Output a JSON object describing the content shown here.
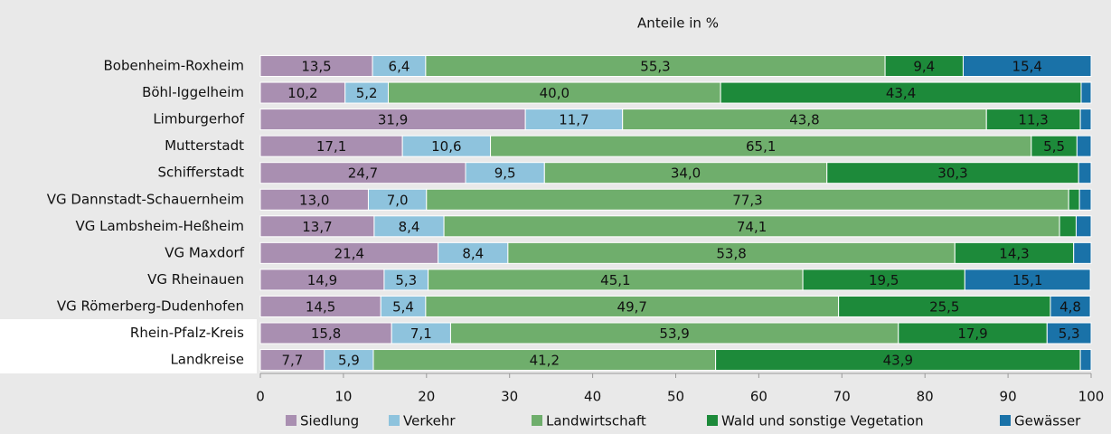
{
  "chart_data": {
    "type": "stacked-bar-horizontal",
    "title": "Anteile in %",
    "categories": [
      "Bobenheim-Roxheim",
      "Böhl-Iggelheim",
      "Limburgerhof",
      "Mutterstadt",
      "Schifferstadt",
      "VG Dannstadt-Schauernheim",
      "VG Lambsheim-Heßheim",
      "VG Maxdorf",
      "VG Rheinauen",
      "VG Römerberg-Dudenhofen",
      "Rhein-Pfalz-Kreis",
      "Landkreise"
    ],
    "series": [
      {
        "name": "Siedlung",
        "color": "#a98fb1",
        "values": [
          13.5,
          10.2,
          31.9,
          17.1,
          24.7,
          13.0,
          13.7,
          21.4,
          14.9,
          14.5,
          15.8,
          7.7
        ],
        "value_labels": [
          "13,5",
          "10,2",
          "31,9",
          "17,1",
          "24,7",
          "13,0",
          "13,7",
          "21,4",
          "14,9",
          "14,5",
          "15,8",
          "7,7"
        ]
      },
      {
        "name": "Verkehr",
        "color": "#8ec3dd",
        "values": [
          6.4,
          5.2,
          11.7,
          10.6,
          9.5,
          7.0,
          8.4,
          8.4,
          5.3,
          5.4,
          7.1,
          5.9
        ],
        "value_labels": [
          "6,4",
          "5,2",
          "11,7",
          "10,6",
          "9,5",
          "7,0",
          "8,4",
          "8,4",
          "5,3",
          "5,4",
          "7,1",
          "5,9"
        ]
      },
      {
        "name": "Landwirtschaft",
        "color": "#6fae6c",
        "values": [
          55.3,
          40.0,
          43.8,
          65.1,
          34.0,
          77.3,
          74.1,
          53.8,
          45.1,
          49.7,
          53.9,
          41.2
        ],
        "value_labels": [
          "55,3",
          "40,0",
          "43,8",
          "65,1",
          "34,0",
          "77,3",
          "74,1",
          "53,8",
          "45,1",
          "49,7",
          "53,9",
          "41,2"
        ]
      },
      {
        "name": "Wald und sonstige Vegetation",
        "color": "#1d8a3a",
        "values": [
          9.4,
          43.4,
          11.3,
          5.5,
          30.3,
          1.3,
          2.0,
          14.3,
          19.5,
          25.5,
          17.9,
          43.9
        ],
        "value_labels": [
          "9,4",
          "43,4",
          "11,3",
          "5,5",
          "30,3",
          null,
          null,
          "14,3",
          "19,5",
          "25,5",
          "17,9",
          "43,9"
        ]
      },
      {
        "name": "Gewässer",
        "color": "#1a72a8",
        "values": [
          15.4,
          1.2,
          1.3,
          1.7,
          1.5,
          1.4,
          1.8,
          2.1,
          15.1,
          4.8,
          5.3,
          1.3
        ],
        "value_labels": [
          "15,4",
          null,
          null,
          null,
          null,
          null,
          null,
          null,
          "15,1",
          "4,8",
          "5,3",
          null
        ]
      }
    ],
    "xlim": [
      0,
      100
    ],
    "xticks": [
      0,
      10,
      20,
      30,
      40,
      50,
      60,
      70,
      80,
      90,
      100
    ]
  }
}
